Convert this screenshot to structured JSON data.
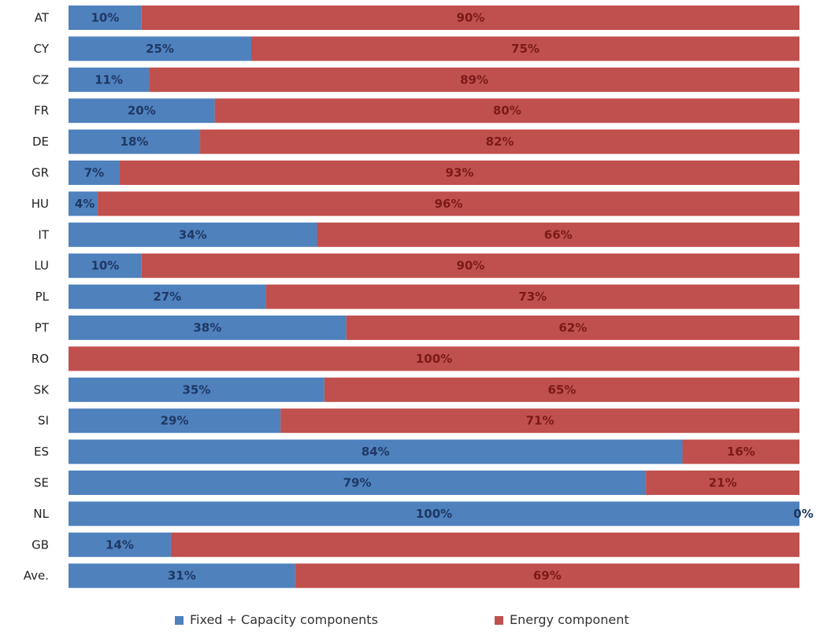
{
  "chart_data": {
    "type": "bar",
    "stacked": true,
    "orientation": "horizontal",
    "percent": true,
    "categories": [
      "AT",
      "CY",
      "CZ",
      "FR",
      "DE",
      "GR",
      "HU",
      "IT",
      "LU",
      "PL",
      "PT",
      "RO",
      "SK",
      "SI",
      "ES",
      "SE",
      "NL",
      "GB",
      "Ave."
    ],
    "series": [
      {
        "name": "Fixed + Capacity components",
        "color": "#4f81bd",
        "values": [
          10,
          25,
          11,
          20,
          18,
          7,
          4,
          34,
          10,
          27,
          38,
          0,
          35,
          29,
          84,
          79,
          100,
          14,
          31
        ],
        "labels": [
          "10%",
          "25%",
          "11%",
          "20%",
          "18%",
          "7%",
          "4%",
          "34%",
          "10%",
          "27%",
          "38%",
          "",
          "35%",
          "29%",
          "84%",
          "79%",
          "100%",
          "14%",
          "31%"
        ]
      },
      {
        "name": "Energy component",
        "color": "#c0504d",
        "values": [
          90,
          75,
          89,
          80,
          82,
          93,
          96,
          66,
          90,
          73,
          62,
          100,
          65,
          71,
          16,
          21,
          0,
          86,
          69
        ],
        "labels": [
          "90%",
          "75%",
          "89%",
          "80%",
          "82%",
          "93%",
          "96%",
          "66%",
          "90%",
          "73%",
          "62%",
          "100%",
          "65%",
          "71%",
          "16%",
          "21%",
          "0%",
          "",
          "69%"
        ]
      }
    ],
    "legend": "bottom",
    "grid": false
  }
}
